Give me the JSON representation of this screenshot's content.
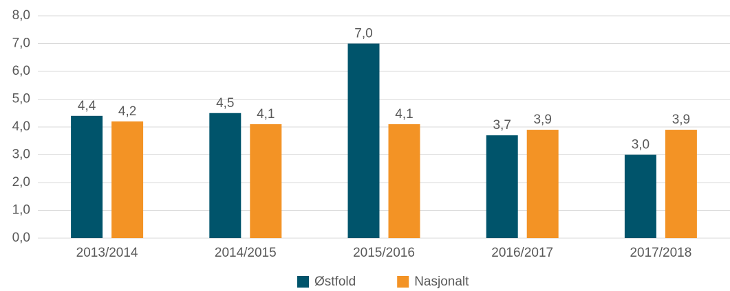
{
  "chart_data": {
    "type": "bar",
    "categories": [
      "2013/2014",
      "2014/2015",
      "2015/2016",
      "2016/2017",
      "2017/2018"
    ],
    "series": [
      {
        "name": "Østfold",
        "color": "#00546b",
        "values": [
          4.4,
          4.5,
          7.0,
          3.7,
          3.0
        ],
        "value_labels": [
          "4,4",
          "4,5",
          "7,0",
          "3,7",
          "3,0"
        ]
      },
      {
        "name": "Nasjonalt",
        "color": "#f39325",
        "values": [
          4.2,
          4.1,
          4.1,
          3.9,
          3.9
        ],
        "value_labels": [
          "4,2",
          "4,1",
          "4,1",
          "3,9",
          "3,9"
        ]
      }
    ],
    "ylim": [
      0,
      8
    ],
    "yticks": [
      {
        "value": 0,
        "label": "0,0"
      },
      {
        "value": 1,
        "label": "1,0"
      },
      {
        "value": 2,
        "label": "2,0"
      },
      {
        "value": 3,
        "label": "3,0"
      },
      {
        "value": 4,
        "label": "4,0"
      },
      {
        "value": 5,
        "label": "5,0"
      },
      {
        "value": 6,
        "label": "6,0"
      },
      {
        "value": 7,
        "label": "7,0"
      },
      {
        "value": 8,
        "label": "8,0"
      }
    ],
    "grid": true,
    "legend": "bottom"
  }
}
